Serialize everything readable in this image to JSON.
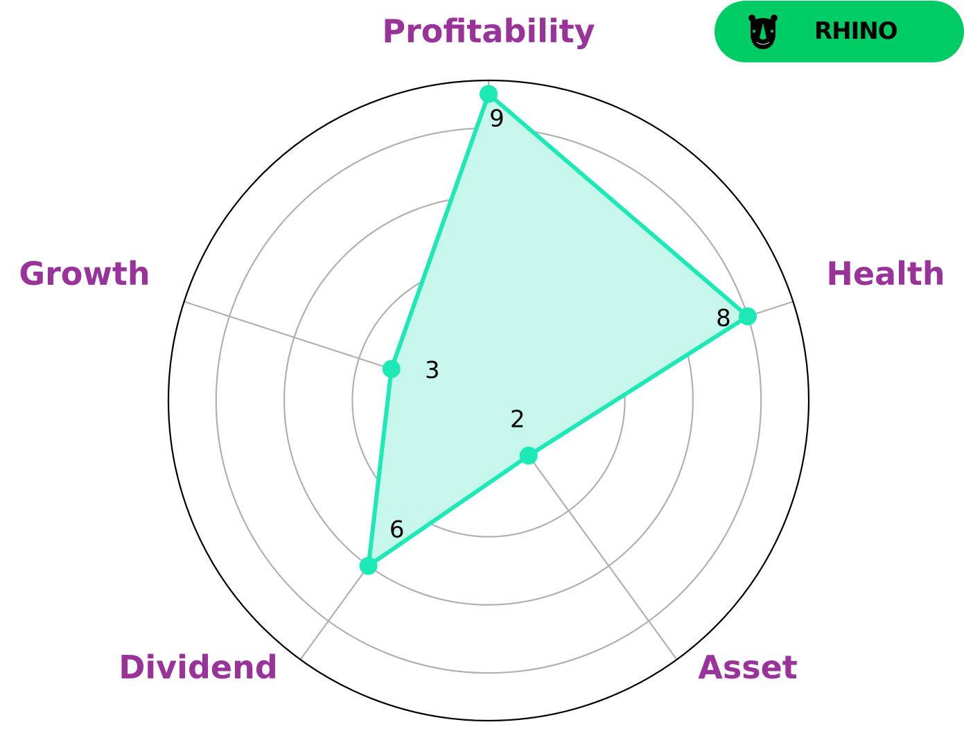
{
  "chart_data": {
    "type": "radar",
    "categories": [
      "Profitability",
      "Health",
      "Asset",
      "Dividend",
      "Growth"
    ],
    "values": [
      9,
      8,
      2,
      6,
      3
    ],
    "value_labels": [
      "9",
      "8",
      "2",
      "6",
      "3"
    ],
    "rlim": [
      0,
      9.4
    ],
    "grid_rings": [
      2,
      4,
      6,
      8
    ],
    "grid": true,
    "colors": {
      "line": "#1de9b6",
      "fill": "#c6f7ea",
      "label": "#993399",
      "grid": "#b0b0b0",
      "outer": "#000000"
    }
  },
  "logo": {
    "text": "RHINO",
    "icon": "rhino-head-icon",
    "background": "#00cc66"
  }
}
